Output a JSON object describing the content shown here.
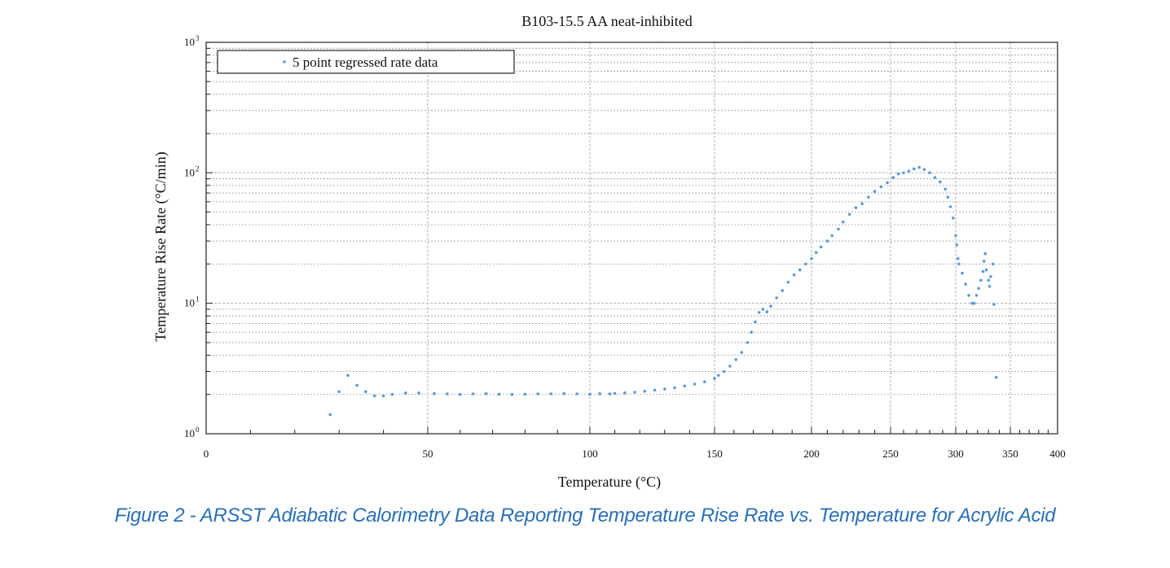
{
  "chart_data": {
    "type": "scatter",
    "title": "B103-15.5  AA neat-inhibited",
    "xlabel": "Temperature (°C)",
    "ylabel": "Temperature  Rise Rate  (°C/min)",
    "xlim": [
      0,
      400
    ],
    "ylim": [
      1,
      1000
    ],
    "yscale": "log",
    "grid": true,
    "legend_position": "top-left",
    "x_ticks": [
      {
        "value": 0,
        "label": "0"
      },
      {
        "value": 50,
        "label": "50"
      },
      {
        "value": 100,
        "label": "100"
      },
      {
        "value": 150,
        "label": "150"
      },
      {
        "value": 200,
        "label": "200"
      },
      {
        "value": 250,
        "label": "250"
      },
      {
        "value": 300,
        "label": "300"
      },
      {
        "value": 350,
        "label": "350"
      },
      {
        "value": 400,
        "label": "400"
      }
    ],
    "y_ticks": [
      {
        "value": 1,
        "base": "10",
        "exp": "0"
      },
      {
        "value": 10,
        "base": "10",
        "exp": "1"
      },
      {
        "value": 100,
        "base": "10",
        "exp": "2"
      },
      {
        "value": 1000,
        "base": "10",
        "exp": "3"
      }
    ],
    "series": [
      {
        "name": "5 point regressed rate data",
        "color": "#5b9bd5",
        "points": [
          [
            28,
            1.4
          ],
          [
            30,
            2.1
          ],
          [
            32,
            2.8
          ],
          [
            34,
            2.35
          ],
          [
            36,
            2.1
          ],
          [
            38,
            1.95
          ],
          [
            40,
            1.95
          ],
          [
            42,
            2.0
          ],
          [
            45,
            2.05
          ],
          [
            48,
            2.05
          ],
          [
            52,
            2.03
          ],
          [
            56,
            2.02
          ],
          [
            60,
            2.0
          ],
          [
            64,
            2.02
          ],
          [
            68,
            2.03
          ],
          [
            72,
            2.01
          ],
          [
            76,
            2.0
          ],
          [
            80,
            2.01
          ],
          [
            84,
            2.02
          ],
          [
            88,
            2.02
          ],
          [
            92,
            2.03
          ],
          [
            96,
            2.02
          ],
          [
            100,
            2.01
          ],
          [
            104,
            2.03
          ],
          [
            108,
            2.02
          ],
          [
            110,
            2.04
          ],
          [
            114,
            2.06
          ],
          [
            118,
            2.08
          ],
          [
            122,
            2.12
          ],
          [
            126,
            2.16
          ],
          [
            130,
            2.2
          ],
          [
            134,
            2.25
          ],
          [
            138,
            2.32
          ],
          [
            142,
            2.4
          ],
          [
            146,
            2.5
          ],
          [
            150,
            2.65
          ],
          [
            152,
            2.8
          ],
          [
            155,
            3.0
          ],
          [
            158,
            3.3
          ],
          [
            161,
            3.7
          ],
          [
            164,
            4.2
          ],
          [
            167,
            5.0
          ],
          [
            169,
            6.0
          ],
          [
            171,
            7.2
          ],
          [
            173,
            8.5
          ],
          [
            175,
            9.0
          ],
          [
            177,
            8.6
          ],
          [
            179,
            9.5
          ],
          [
            182,
            11.0
          ],
          [
            185,
            12.5
          ],
          [
            188,
            14.5
          ],
          [
            191,
            16.5
          ],
          [
            194,
            18.0
          ],
          [
            197,
            20.0
          ],
          [
            200,
            22.0
          ],
          [
            203,
            24.5
          ],
          [
            206,
            27.0
          ],
          [
            210,
            30.0
          ],
          [
            213,
            33.0
          ],
          [
            217,
            37.0
          ],
          [
            220,
            42.0
          ],
          [
            224,
            48.0
          ],
          [
            228,
            54.0
          ],
          [
            232,
            58.0
          ],
          [
            236,
            65.0
          ],
          [
            240,
            72.0
          ],
          [
            244,
            78.0
          ],
          [
            248,
            84.0
          ],
          [
            252,
            92.0
          ],
          [
            256,
            98.0
          ],
          [
            260,
            100.0
          ],
          [
            264,
            103.0
          ],
          [
            268,
            107.0
          ],
          [
            272,
            110.0
          ],
          [
            276,
            106.0
          ],
          [
            280,
            100.0
          ],
          [
            284,
            92.0
          ],
          [
            288,
            85.0
          ],
          [
            292,
            75.0
          ],
          [
            294,
            65.0
          ],
          [
            296,
            55.0
          ],
          [
            298,
            45.0
          ],
          [
            300,
            33.0
          ],
          [
            301,
            28.0
          ],
          [
            302,
            22.0
          ],
          [
            303,
            20.0
          ],
          [
            306,
            17.0
          ],
          [
            309,
            14.0
          ],
          [
            312,
            11.5
          ],
          [
            315,
            10.0
          ],
          [
            317,
            10.0
          ],
          [
            319,
            11.5
          ],
          [
            321,
            13.0
          ],
          [
            323,
            15.0
          ],
          [
            325,
            17.5
          ],
          [
            326,
            21.0
          ],
          [
            327,
            24.0
          ],
          [
            328,
            18.0
          ],
          [
            330,
            15.0
          ],
          [
            331,
            13.5
          ],
          [
            332,
            16.0
          ],
          [
            334,
            20.0
          ],
          [
            335,
            9.8
          ],
          [
            337,
            2.7
          ]
        ]
      }
    ]
  },
  "caption": "Figure 2 - ARSST Adiabatic Calorimetry Data Reporting Temperature Rise Rate vs. Temperature for Acrylic Acid"
}
